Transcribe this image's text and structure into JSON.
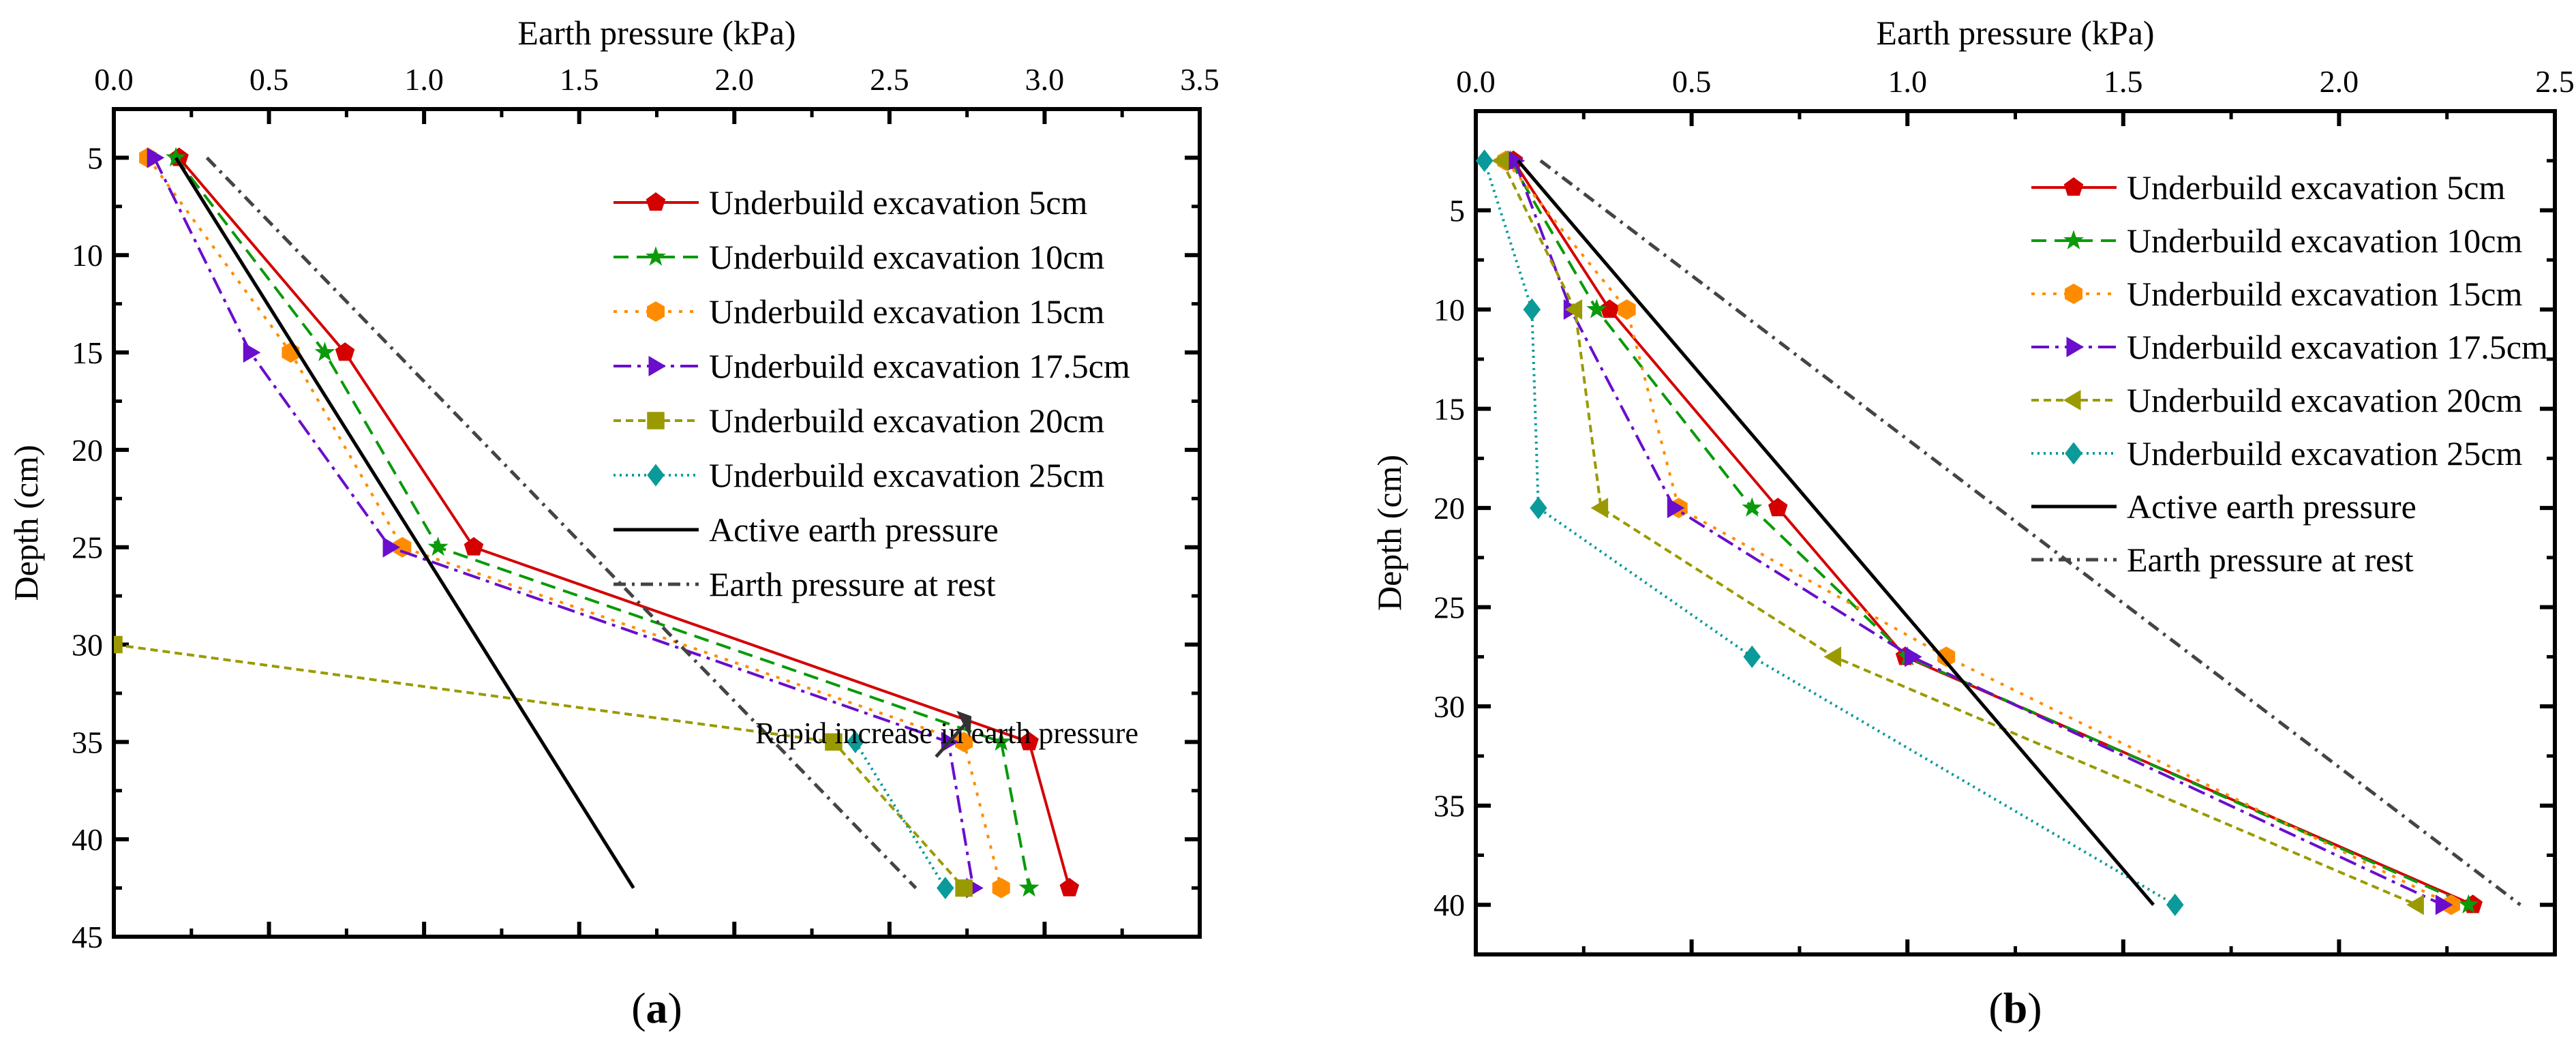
{
  "chart_data": [
    {
      "type": "line",
      "panel_label": "(a)",
      "panel_letter": "a",
      "xlabel": "Earth pressure (kPa)",
      "ylabel": "Depth (cm)",
      "xlim": [
        0,
        3.5
      ],
      "ylim": [
        2.5,
        45
      ],
      "xticks": [
        "0.0",
        "0.5",
        "1.0",
        "1.5",
        "2.0",
        "2.5",
        "3.0",
        "3.5"
      ],
      "yticks": [
        "5",
        "10",
        "15",
        "20",
        "25",
        "30",
        "35",
        "40",
        "45"
      ],
      "legend_position": "top-right",
      "annotation": {
        "text": "Rapid increase in earth pressure",
        "points_to": [
          2.76,
          34.8
        ]
      },
      "series": [
        {
          "name": "Underbuild excavation 5cm",
          "marker": "pentagon",
          "color": "#d40000",
          "dash": "solid",
          "depth": [
            5,
            15,
            25,
            35,
            42.5
          ],
          "pressure": [
            0.21,
            0.745,
            1.16,
            2.95,
            3.08
          ]
        },
        {
          "name": "Underbuild excavation 10cm",
          "marker": "star",
          "color": "#0a9a0a",
          "dash": "dashed",
          "depth": [
            5,
            15,
            25,
            35,
            42.5
          ],
          "pressure": [
            0.2,
            0.68,
            1.045,
            2.86,
            2.95
          ]
        },
        {
          "name": "Underbuild excavation 15cm",
          "marker": "hexagon",
          "color": "#ff8c00",
          "dash": "dotted",
          "depth": [
            5,
            15,
            25,
            35,
            42.5
          ],
          "pressure": [
            0.11,
            0.57,
            0.93,
            2.74,
            2.86
          ]
        },
        {
          "name": "Underbuild excavation 17.5cm",
          "marker": "triangle-right",
          "color": "#6a0dcc",
          "dash": "dashdot",
          "depth": [
            5,
            15,
            25,
            35,
            42.5
          ],
          "pressure": [
            0.13,
            0.44,
            0.89,
            2.69,
            2.77
          ]
        },
        {
          "name": "Underbuild excavation 20cm",
          "marker": "square",
          "color": "#9a9a00",
          "dash": "shortdash",
          "depth": [
            30,
            35,
            42.5
          ],
          "pressure": [
            0,
            2.32,
            2.74
          ]
        },
        {
          "name": "Underbuild excavation 25cm",
          "marker": "diamond",
          "color": "#0a9a9a",
          "dash": "fine-dotted",
          "depth": [
            35,
            42.5
          ],
          "pressure": [
            2.39,
            2.68
          ]
        },
        {
          "name": "Active earth pressure",
          "marker": "none",
          "color": "#000000",
          "dash": "solid",
          "depth": [
            5,
            42.5
          ],
          "pressure": [
            0.2,
            1.675
          ]
        },
        {
          "name": "Earth pressure at rest",
          "marker": "none",
          "color": "#444444",
          "dash": "dashdot-long",
          "depth": [
            5,
            42.5
          ],
          "pressure": [
            0.3,
            2.585
          ]
        }
      ]
    },
    {
      "type": "line",
      "panel_label": "(b)",
      "panel_letter": "b",
      "xlabel": "Earth pressure (kPa)",
      "ylabel": "Depth (cm)",
      "xlim": [
        0,
        2.5
      ],
      "ylim": [
        0,
        42.5
      ],
      "xticks": [
        "0.0",
        "0.5",
        "1.0",
        "1.5",
        "2.0",
        "2.5"
      ],
      "yticks": [
        "5",
        "10",
        "15",
        "20",
        "25",
        "30",
        "35",
        "40"
      ],
      "legend_position": "top-right",
      "series": [
        {
          "name": "Underbuild excavation 5cm",
          "marker": "pentagon",
          "color": "#d40000",
          "dash": "solid",
          "depth": [
            2.5,
            10,
            20,
            27.5,
            40
          ],
          "pressure": [
            0.087,
            0.31,
            0.7,
            0.995,
            2.31
          ]
        },
        {
          "name": "Underbuild excavation 10cm",
          "marker": "star",
          "color": "#0a9a0a",
          "dash": "dashed",
          "depth": [
            2.5,
            10,
            20,
            27.5,
            40
          ],
          "pressure": [
            0.08,
            0.28,
            0.64,
            1.0,
            2.3
          ]
        },
        {
          "name": "Underbuild excavation 15cm",
          "marker": "hexagon",
          "color": "#ff8c00",
          "dash": "dotted",
          "depth": [
            2.5,
            10,
            20,
            27.5,
            40
          ],
          "pressure": [
            0.07,
            0.35,
            0.47,
            1.09,
            2.26
          ]
        },
        {
          "name": "Underbuild excavation 17.5cm",
          "marker": "triangle-right",
          "color": "#6a0dcc",
          "dash": "dashdot",
          "depth": [
            2.5,
            10,
            20,
            27.5,
            40
          ],
          "pressure": [
            0.09,
            0.22,
            0.46,
            1.01,
            2.24
          ]
        },
        {
          "name": "Underbuild excavation 20cm",
          "marker": "triangle-left",
          "color": "#9a9a00",
          "dash": "shortdash",
          "depth": [
            2.5,
            10,
            20,
            27.5,
            40
          ],
          "pressure": [
            0.06,
            0.23,
            0.29,
            0.83,
            2.18
          ]
        },
        {
          "name": "Underbuild excavation 25cm",
          "marker": "diamond",
          "color": "#0a9a9a",
          "dash": "fine-dotted",
          "depth": [
            2.5,
            10,
            20,
            27.5,
            40
          ],
          "pressure": [
            0.02,
            0.13,
            0.145,
            0.64,
            1.62
          ]
        },
        {
          "name": "Active earth pressure",
          "marker": "none",
          "color": "#000000",
          "dash": "solid",
          "depth": [
            2.5,
            40
          ],
          "pressure": [
            0.098,
            1.57
          ]
        },
        {
          "name": "Earth pressure at rest",
          "marker": "none",
          "color": "#444444",
          "dash": "dashdot-long",
          "depth": [
            2.5,
            40
          ],
          "pressure": [
            0.15,
            2.42
          ]
        }
      ]
    }
  ]
}
